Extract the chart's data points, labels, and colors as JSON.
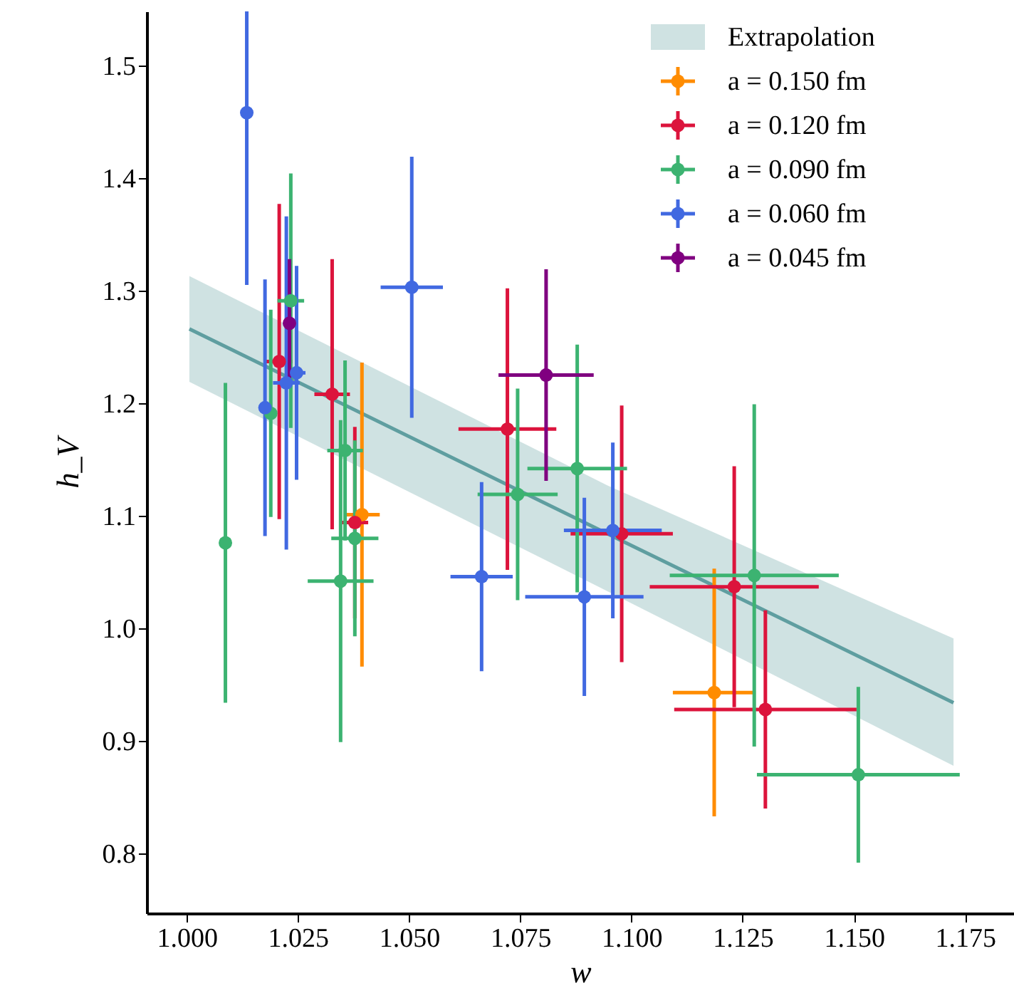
{
  "chart_data": {
    "type": "scatter",
    "xlabel": "w",
    "ylabel": "h_V",
    "xlim": [
      0.991,
      1.186
    ],
    "ylim": [
      0.747,
      1.548
    ],
    "xticks": [
      {
        "value": 1.0,
        "label": "1.000"
      },
      {
        "value": 1.025,
        "label": "1.025"
      },
      {
        "value": 1.05,
        "label": "1.050"
      },
      {
        "value": 1.075,
        "label": "1.075"
      },
      {
        "value": 1.1,
        "label": "1.100"
      },
      {
        "value": 1.125,
        "label": "1.125"
      },
      {
        "value": 1.15,
        "label": "1.150"
      },
      {
        "value": 1.175,
        "label": "1.175"
      }
    ],
    "yticks": [
      {
        "value": 0.8,
        "label": "0.8"
      },
      {
        "value": 0.9,
        "label": "0.9"
      },
      {
        "value": 1.0,
        "label": "1.0"
      },
      {
        "value": 1.1,
        "label": "1.1"
      },
      {
        "value": 1.2,
        "label": "1.2"
      },
      {
        "value": 1.3,
        "label": "1.3"
      },
      {
        "value": 1.4,
        "label": "1.4"
      },
      {
        "value": 1.5,
        "label": "1.5"
      }
    ],
    "grid": false,
    "legend": "top right",
    "series": [
      {
        "name": "Extrapolation",
        "type": "line",
        "color": "#5f9ea0",
        "x": [
          1.0006,
          1.0946,
          1.1724
        ],
        "values": [
          1.266,
          1.084,
          0.934
        ],
        "lower": [
          1.219,
          1.033,
          0.878
        ],
        "upper": [
          1.313,
          1.127,
          0.991
        ]
      },
      {
        "name": "a = 0.150 fm",
        "marker": "circle",
        "color": "#ff8c00",
        "x": [
          1.0394,
          1.1186
        ],
        "values": [
          1.101,
          0.943
        ],
        "errors": [
          0.135,
          0.11
        ],
        "xerrors": [
          0.004,
          0.0093
        ]
      },
      {
        "name": "a = 0.120 fm",
        "marker": "circle",
        "color": "#dc143c",
        "x": [
          1.0208,
          1.0327,
          1.0378,
          1.0721,
          1.0978,
          1.1231,
          1.1301
        ],
        "values": [
          1.237,
          1.208,
          1.094,
          1.177,
          1.084,
          1.037,
          0.928
        ],
        "errors": [
          0.14,
          0.12,
          0.085,
          0.125,
          0.114,
          0.107,
          0.088
        ],
        "xerrors": [
          0.003,
          0.004,
          0.003,
          0.011,
          0.0115,
          0.019,
          0.0205
        ]
      },
      {
        "name": "a = 0.090 fm",
        "marker": "circle",
        "color": "#3cb371",
        "x": [
          1.0087,
          1.0189,
          1.0234,
          1.0356,
          1.0378,
          1.0346,
          1.0744,
          1.0878,
          1.1276,
          1.151
        ],
        "values": [
          1.076,
          1.191,
          1.291,
          1.158,
          1.08,
          1.042,
          1.119,
          1.142,
          1.047,
          0.87
        ],
        "errors": [
          0.142,
          0.092,
          0.113,
          0.08,
          0.087,
          0.143,
          0.094,
          0.11,
          0.152,
          0.078
        ],
        "xerrors": [
          null,
          null,
          0.003,
          0.004,
          0.0053,
          0.0074,
          0.009,
          0.0112,
          0.019,
          0.0228
        ]
      },
      {
        "name": "a = 0.060 fm",
        "marker": "circle",
        "color": "#4169e1",
        "x": [
          1.0135,
          1.0176,
          1.0224,
          1.0247,
          1.0506,
          1.0663,
          1.0894,
          1.0958
        ],
        "values": [
          1.458,
          1.196,
          1.218,
          1.227,
          1.303,
          1.046,
          1.028,
          1.087
        ],
        "errors": [
          [
            1.305,
            1.548
          ],
          0.114,
          0.148,
          0.095,
          0.116,
          0.084,
          0.088,
          0.078
        ],
        "xerrors": [
          null,
          null,
          0.003,
          0.002,
          0.007,
          0.007,
          0.0133,
          0.011
        ]
      },
      {
        "name": "a = 0.045 fm",
        "marker": "circle",
        "color": "#800080",
        "x": [
          1.0231,
          1.0808
        ],
        "values": [
          1.271,
          1.225
        ],
        "errors": [
          0.057,
          0.094
        ],
        "xerrors": [
          null,
          0.0107
        ]
      }
    ]
  }
}
